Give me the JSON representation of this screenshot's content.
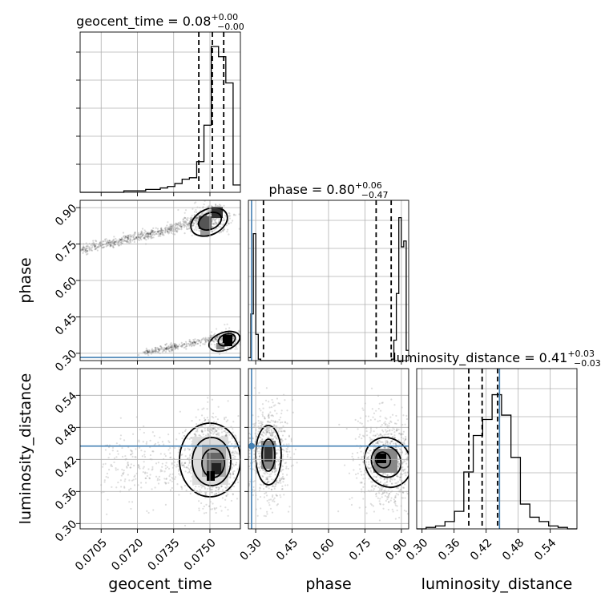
{
  "chart_data": {
    "type": "corner",
    "parameters": [
      {
        "name": "geocent_time",
        "xlabel": "geocent_time",
        "ticks": [
          0.0705,
          0.072,
          0.0735,
          0.075
        ],
        "tick_labels": [
          "0.0705",
          "0.0720",
          "0.0735",
          "0.0750"
        ],
        "range": [
          0.06963,
          0.07626
        ]
      },
      {
        "name": "phase",
        "xlabel": "phase",
        "ticks": [
          0.3,
          0.45,
          0.6,
          0.75,
          0.9
        ],
        "tick_labels": [
          "0.30",
          "0.45",
          "0.60",
          "0.75",
          "0.90"
        ],
        "range": [
          0.27,
          0.93
        ]
      },
      {
        "name": "luminosity_distance",
        "xlabel": "luminosity_distance",
        "ticks": [
          0.3,
          0.36,
          0.42,
          0.48,
          0.54
        ],
        "tick_labels": [
          "0.30",
          "0.36",
          "0.42",
          "0.48",
          "0.54"
        ],
        "range": [
          0.29,
          0.59
        ]
      }
    ],
    "titles": [
      {
        "prefix": "geocent_time = ",
        "value": "0.08",
        "plus": "+0.00",
        "minus": "−0.00"
      },
      {
        "prefix": "phase = ",
        "value": "0.80",
        "plus": "+0.06",
        "minus": "−0.47"
      },
      {
        "prefix": "luminosity_distance = ",
        "value": "0.41",
        "plus": "+0.03",
        "minus": "−0.03"
      }
    ],
    "truths": {
      "geocent_time": null,
      "phase": 0.283,
      "luminosity_distance": 0.445
    },
    "quantiles": {
      "geocent_time": [
        0.07454,
        0.0751,
        0.07557
      ],
      "phase": [
        0.332,
        0.796,
        0.858
      ],
      "luminosity_distance": [
        0.3875,
        0.4125,
        0.4415
      ]
    },
    "histograms": {
      "geocent_time": [
        0.0,
        0.0,
        0.0,
        0.0,
        0.0,
        0.0,
        0.01,
        0.01,
        0.01,
        0.02,
        0.02,
        0.03,
        0.04,
        0.06,
        0.09,
        0.1,
        0.21,
        0.46,
        1.0,
        0.93,
        0.75,
        0.05
      ],
      "phase": [
        0.02,
        0.32,
        0.87,
        0.18,
        0.01,
        0.0,
        0.0,
        0.0,
        0.0,
        0.0,
        0.0,
        0.0,
        0.0,
        0.0,
        0.0,
        0.0,
        0.0,
        0.0,
        0.0,
        0.0,
        0.0,
        0.0,
        0.0,
        0.0,
        0.0,
        0.0,
        0.0,
        0.0,
        0.0,
        0.0,
        0.0,
        0.0,
        0.0,
        0.0,
        0.0,
        0.0,
        0.0,
        0.0,
        0.0,
        0.0,
        0.0,
        0.0,
        0.0,
        0.0,
        0.0,
        0.0,
        0.0,
        0.0,
        0.0,
        0.0,
        0.0,
        0.0,
        0.0,
        0.0,
        0.0,
        0.0,
        0.0,
        0.0,
        0.01,
        0.14,
        0.46,
        0.98,
        0.78,
        0.82,
        0.07
      ],
      "luminosity_distance": [
        0.0,
        0.01,
        0.02,
        0.05,
        0.12,
        0.39,
        0.64,
        0.75,
        0.92,
        0.78,
        0.49,
        0.17,
        0.08,
        0.05,
        0.02,
        0.01,
        0.0
      ]
    },
    "cloud_centers": [
      {
        "params": [
          "geocent_time",
          "phase"
        ],
        "points": [
          [
            0.0752,
            0.875
          ],
          [
            0.0757,
            0.345
          ]
        ]
      },
      {
        "params": [
          "geocent_time",
          "luminosity_distance"
        ],
        "points": [
          [
            0.0752,
            0.405
          ]
        ]
      },
      {
        "params": [
          "phase",
          "luminosity_distance"
        ],
        "points": [
          [
            0.33,
            0.42
          ],
          [
            0.82,
            0.41
          ]
        ]
      }
    ]
  }
}
